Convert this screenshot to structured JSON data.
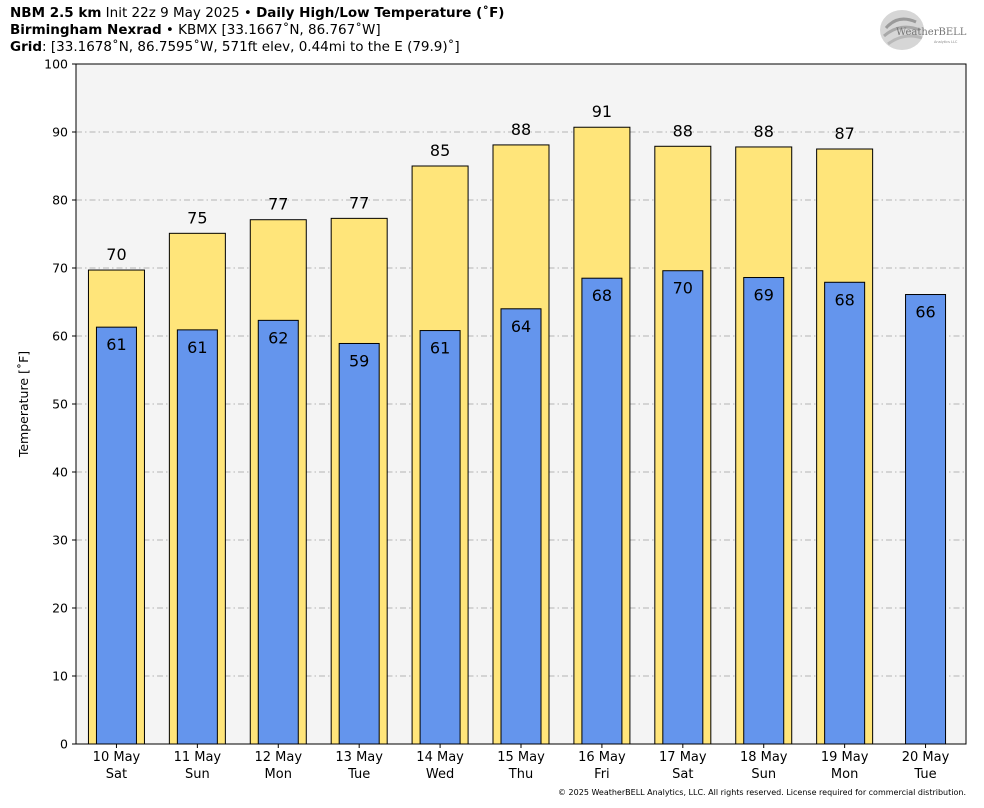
{
  "header": {
    "line1_bold": "NBM 2.5 km",
    "line1_normal": " Init 22z 9 May 2025 • ",
    "line1_bold2": "Daily High/Low Temperature (˚F)",
    "line2_bold": "Birmingham Nexrad",
    "line2_normal": " • KBMX [33.1667˚N, 86.767˚W]",
    "line3_bold": "Grid",
    "line3_normal": ": [33.1678˚N, 86.7595˚W, 571ft elev, 0.44mi to the E (79.9)˚]"
  },
  "logo": {
    "text": "WeatherBELL",
    "subtext": "Analytics LLC"
  },
  "copyright": "© 2025 WeatherBELL Analytics, LLC. All rights reserved. License required for commercial distribution.",
  "chart_data": {
    "type": "bar",
    "ylabel": "Temperature [˚F]",
    "ylim": [
      0,
      100
    ],
    "yticks": [
      0,
      10,
      20,
      30,
      40,
      50,
      60,
      70,
      80,
      90,
      100
    ],
    "grid": true,
    "categories": [
      "10 May\nSat",
      "11 May\nSun",
      "12 May\nMon",
      "13 May\nTue",
      "14 May\nWed",
      "15 May\nThu",
      "16 May\nFri",
      "17 May\nSat",
      "18 May\nSun",
      "19 May\nMon",
      "20 May\nTue"
    ],
    "series": [
      {
        "values": [
          69.7,
          75.1,
          77.1,
          77.3,
          85.0,
          88.1,
          90.7,
          87.9,
          87.8,
          87.5,
          null
        ],
        "labels": [
          "70",
          "75",
          "77",
          "77",
          "85",
          "88",
          "91",
          "88",
          "88",
          "87",
          ""
        ],
        "color": "#ffe57a"
      },
      {
        "values": [
          61.3,
          60.9,
          62.3,
          58.9,
          60.8,
          64.0,
          68.5,
          69.6,
          68.6,
          67.9,
          66.1
        ],
        "labels": [
          "61",
          "61",
          "62",
          "59",
          "61",
          "64",
          "68",
          "70",
          "69",
          "68",
          "66"
        ],
        "color": "#6495ed"
      }
    ]
  }
}
